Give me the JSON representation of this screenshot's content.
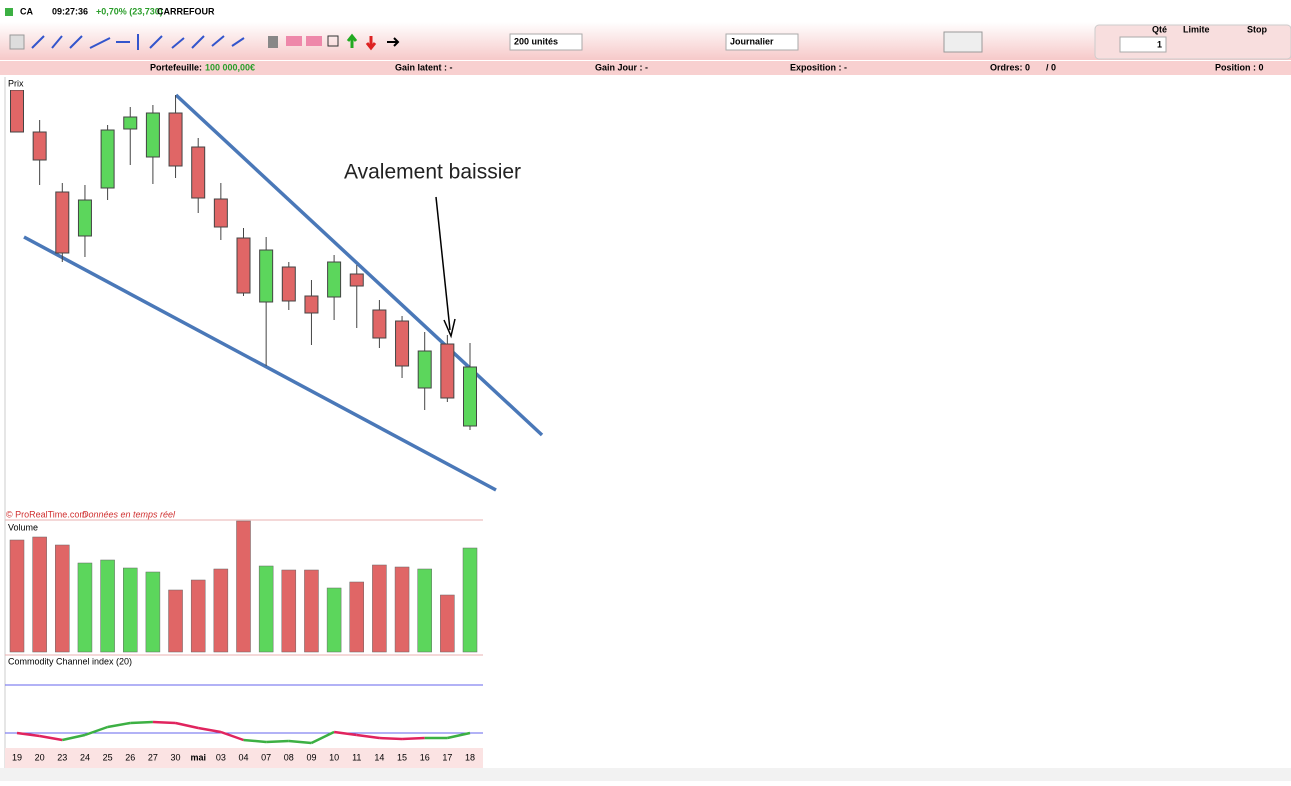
{
  "header": {
    "symbol": "CA",
    "time": "09:27:36",
    "change": "+0,70% (23,730)",
    "name": "CARREFOUR"
  },
  "toolbar": {
    "quantity_select": "200 unités",
    "period_select": "Journalier",
    "qty_label": "Qté",
    "limit_label": "Limite",
    "stop_label": "Stop",
    "qty_value": "1"
  },
  "status": {
    "portfolio_label": "Portefeuille:",
    "portfolio_value": "100 000,00€",
    "gain_latent": "Gain latent : -",
    "gain_day": "Gain Jour : -",
    "exposure": "Exposition : -",
    "orders": "Ordres: 0",
    "orders_b": "/ 0",
    "position": "Position : 0"
  },
  "panels": {
    "price": "Prix",
    "copyright": "© ProRealTime.com",
    "realtime": "Données en temps réel",
    "volume": "Volume",
    "cci": "Commodity Channel index (20)"
  },
  "chart_data": [
    {
      "type": "candlestick",
      "annotation": "Avalement baissier",
      "up_color": "#5cd65c",
      "down_color": "#e06666",
      "categories": [
        "19",
        "20",
        "23",
        "24",
        "25",
        "26",
        "27",
        "30",
        "mai",
        "03",
        "04",
        "07",
        "08",
        "09",
        "10",
        "11",
        "14",
        "15",
        "16",
        "17",
        "18"
      ],
      "open": [
        415,
        373,
        313,
        269,
        317,
        376,
        348,
        392,
        358,
        306,
        267,
        203,
        238,
        209,
        208,
        231,
        195,
        184,
        117,
        161,
        79
      ],
      "close": [
        373,
        345,
        252,
        305,
        375,
        388,
        392,
        339,
        307,
        278,
        212,
        255,
        204,
        192,
        243,
        219,
        167,
        139,
        154,
        107,
        138
      ],
      "high": [
        415,
        385,
        322,
        320,
        380,
        398,
        400,
        410,
        367,
        322,
        277,
        268,
        243,
        225,
        250,
        240,
        205,
        189,
        173,
        170,
        162
      ],
      "low": [
        373,
        320,
        243,
        248,
        305,
        340,
        321,
        327,
        292,
        265,
        209,
        139,
        195,
        160,
        185,
        177,
        157,
        127,
        95,
        103,
        75
      ],
      "ylim": [
        0,
        415
      ]
    },
    {
      "type": "bar",
      "values": [
        112,
        115,
        107,
        89,
        92,
        84,
        80,
        62,
        72,
        83,
        131,
        86,
        82,
        82,
        64,
        70,
        87,
        85,
        83,
        57,
        104
      ],
      "ylim": [
        0,
        132
      ]
    },
    {
      "type": "line",
      "values": [
        27,
        24,
        20,
        25,
        33,
        37,
        38,
        37,
        32,
        28,
        20,
        18,
        19,
        17,
        28,
        25,
        22,
        21,
        22,
        22,
        27
      ],
      "colors": [
        "#e0245e",
        "#e0245e",
        "#e0245e",
        "#3cb043",
        "#3cb043",
        "#3cb043",
        "#3cb043",
        "#e0245e",
        "#e0245e",
        "#e0245e",
        "#e0245e",
        "#3cb043",
        "#3cb043",
        "#3cb043",
        "#3cb043",
        "#e0245e",
        "#e0245e",
        "#e0245e",
        "#e0245e",
        "#3cb043",
        "#3cb043"
      ],
      "ylim": [
        0,
        100
      ]
    }
  ]
}
